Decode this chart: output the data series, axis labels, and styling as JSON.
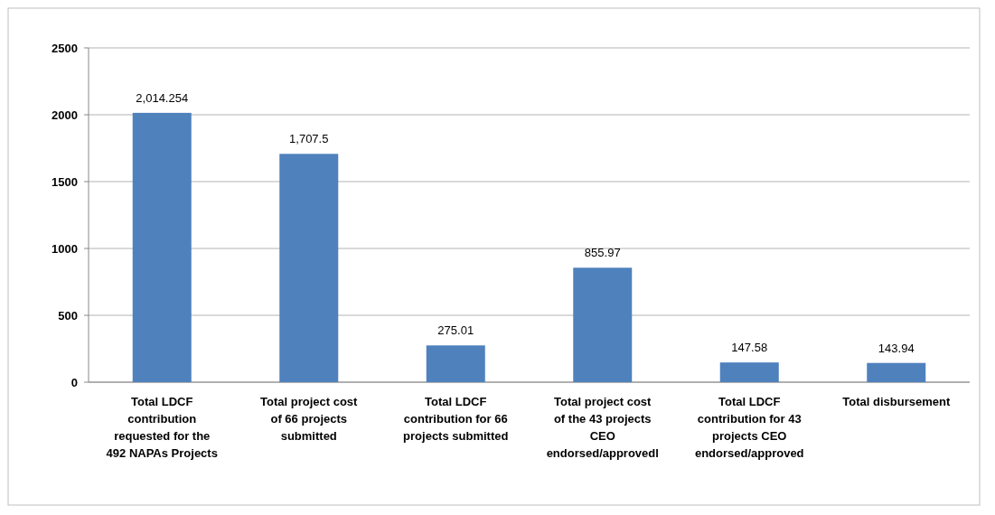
{
  "chart_data": {
    "type": "bar",
    "categories": [
      "Total LDCF contribution requested for the 492 NAPAs Projects",
      "Total project cost of 66 projects submitted",
      "Total LDCF contribution for 66 projects submitted",
      "Total project cost of the 43 projects CEO endorsed/approvedl",
      "Total LDCF contribution for 43 projects CEO endorsed/approved",
      "Total disbursement"
    ],
    "values": [
      2014.254,
      1707.5,
      275.01,
      855.97,
      147.58,
      143.94
    ],
    "value_labels": [
      "2,014.254",
      "1,707.5",
      "275.01",
      "855.97",
      "147.58",
      "143.94"
    ],
    "color": "#4f81bd",
    "ylim": [
      0,
      2500
    ],
    "yticks": [
      0,
      500,
      1000,
      1500,
      2000,
      2500
    ],
    "grid": "y"
  }
}
